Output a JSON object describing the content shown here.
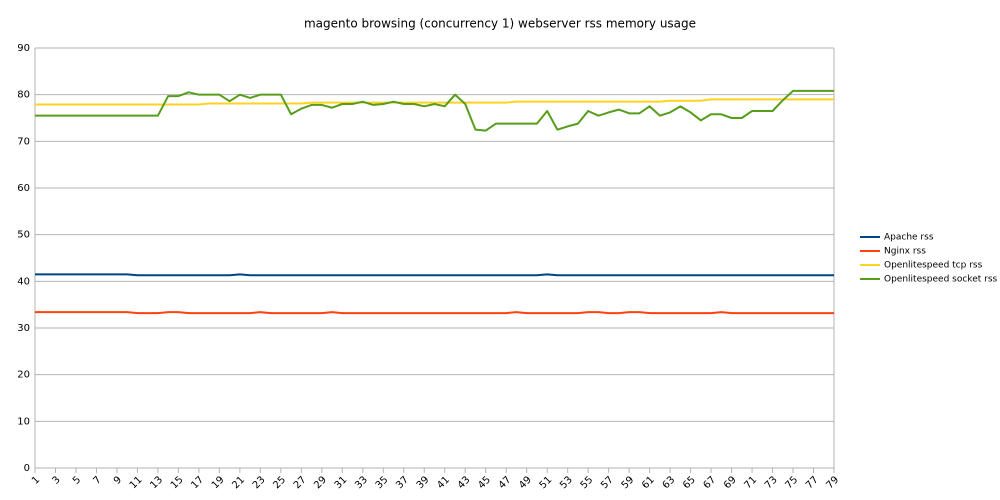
{
  "chart_data": {
    "type": "line",
    "title": "magento browsing (concurrency 1) webserver rss memory usage",
    "x": [
      1,
      2,
      3,
      4,
      5,
      6,
      7,
      8,
      9,
      10,
      11,
      12,
      13,
      14,
      15,
      16,
      17,
      18,
      19,
      20,
      21,
      22,
      23,
      24,
      25,
      26,
      27,
      28,
      29,
      30,
      31,
      32,
      33,
      34,
      35,
      36,
      37,
      38,
      39,
      40,
      41,
      42,
      43,
      44,
      45,
      46,
      47,
      48,
      49,
      50,
      51,
      52,
      53,
      54,
      55,
      56,
      57,
      58,
      59,
      60,
      61,
      62,
      63,
      64,
      65,
      66,
      67,
      68,
      69,
      70,
      71,
      72,
      73,
      74,
      75,
      76,
      77,
      78,
      79
    ],
    "xlim": [
      1,
      79
    ],
    "xticks": [
      1,
      3,
      5,
      7,
      9,
      11,
      13,
      15,
      17,
      19,
      21,
      23,
      25,
      27,
      29,
      31,
      33,
      35,
      37,
      39,
      41,
      43,
      45,
      47,
      49,
      51,
      53,
      55,
      57,
      59,
      61,
      63,
      65,
      67,
      69,
      71,
      73,
      75,
      77,
      79
    ],
    "ylim": [
      0,
      90
    ],
    "yticks": [
      0,
      10,
      20,
      30,
      40,
      50,
      60,
      70,
      80,
      90
    ],
    "grid": true,
    "legend": "right",
    "series": [
      {
        "name": "Apache rss",
        "color": "#004586",
        "values": [
          41.5,
          41.5,
          41.5,
          41.5,
          41.5,
          41.5,
          41.5,
          41.5,
          41.5,
          41.5,
          41.3,
          41.3,
          41.3,
          41.3,
          41.3,
          41.3,
          41.3,
          41.3,
          41.3,
          41.3,
          41.5,
          41.3,
          41.3,
          41.3,
          41.3,
          41.3,
          41.3,
          41.3,
          41.3,
          41.3,
          41.3,
          41.3,
          41.3,
          41.3,
          41.3,
          41.3,
          41.3,
          41.3,
          41.3,
          41.3,
          41.3,
          41.3,
          41.3,
          41.3,
          41.3,
          41.3,
          41.3,
          41.3,
          41.3,
          41.3,
          41.5,
          41.3,
          41.3,
          41.3,
          41.3,
          41.3,
          41.3,
          41.3,
          41.3,
          41.3,
          41.3,
          41.3,
          41.3,
          41.3,
          41.3,
          41.3,
          41.3,
          41.3,
          41.3,
          41.3,
          41.3,
          41.3,
          41.3,
          41.3,
          41.3,
          41.3,
          41.3,
          41.3,
          41.3
        ]
      },
      {
        "name": "Nginx rss",
        "color": "#ff420e",
        "values": [
          33.4,
          33.4,
          33.4,
          33.4,
          33.4,
          33.4,
          33.4,
          33.4,
          33.4,
          33.4,
          33.2,
          33.2,
          33.2,
          33.4,
          33.4,
          33.2,
          33.2,
          33.2,
          33.2,
          33.2,
          33.2,
          33.2,
          33.4,
          33.2,
          33.2,
          33.2,
          33.2,
          33.2,
          33.2,
          33.4,
          33.2,
          33.2,
          33.2,
          33.2,
          33.2,
          33.2,
          33.2,
          33.2,
          33.2,
          33.2,
          33.2,
          33.2,
          33.2,
          33.2,
          33.2,
          33.2,
          33.2,
          33.4,
          33.2,
          33.2,
          33.2,
          33.2,
          33.2,
          33.2,
          33.4,
          33.4,
          33.2,
          33.2,
          33.4,
          33.4,
          33.2,
          33.2,
          33.2,
          33.2,
          33.2,
          33.2,
          33.2,
          33.4,
          33.2,
          33.2,
          33.2,
          33.2,
          33.2,
          33.2,
          33.2,
          33.2,
          33.2,
          33.2,
          33.2
        ]
      },
      {
        "name": "Openlitespeed tcp rss",
        "color": "#ffd320",
        "values": [
          77.9,
          77.9,
          77.9,
          77.9,
          77.9,
          77.9,
          77.9,
          77.9,
          77.9,
          77.9,
          77.9,
          77.9,
          77.9,
          77.9,
          77.9,
          77.9,
          77.9,
          78.1,
          78.1,
          78.1,
          78.1,
          78.1,
          78.1,
          78.1,
          78.1,
          78.1,
          78.1,
          78.3,
          78.3,
          78.3,
          78.3,
          78.3,
          78.3,
          78.3,
          78.3,
          78.3,
          78.3,
          78.3,
          78.3,
          78.3,
          78.3,
          78.3,
          78.3,
          78.3,
          78.3,
          78.3,
          78.3,
          78.5,
          78.5,
          78.5,
          78.5,
          78.5,
          78.5,
          78.5,
          78.5,
          78.5,
          78.5,
          78.5,
          78.5,
          78.5,
          78.5,
          78.5,
          78.7,
          78.7,
          78.7,
          78.7,
          79.0,
          79.0,
          79.0,
          79.0,
          79.0,
          79.0,
          79.0,
          79.0,
          79.0,
          79.0,
          79.0,
          79.0,
          79.0
        ]
      },
      {
        "name": "Openlitespeed socket rss",
        "color": "#579d1c",
        "values": [
          75.5,
          75.5,
          75.5,
          75.5,
          75.5,
          75.5,
          75.5,
          75.5,
          75.5,
          75.5,
          75.5,
          75.5,
          75.5,
          79.7,
          79.7,
          80.5,
          80,
          80,
          80,
          78.6,
          80,
          79.3,
          80,
          80,
          80,
          75.8,
          77,
          77.8,
          77.8,
          77.2,
          78,
          78,
          78.5,
          77.8,
          78,
          78.5,
          78,
          78,
          77.5,
          78,
          77.5,
          80,
          78,
          72.5,
          72.3,
          73.8,
          73.8,
          73.8,
          73.8,
          73.8,
          76.5,
          72.5,
          73.2,
          73.8,
          76.5,
          75.5,
          76.2,
          76.8,
          76,
          76,
          77.5,
          75.5,
          76.2,
          77.5,
          76.2,
          74.5,
          75.8,
          75.8,
          75,
          75,
          76.5,
          76.5,
          76.5,
          78.8,
          80.8,
          80.8,
          80.8,
          80.8,
          80.8
        ]
      }
    ]
  }
}
